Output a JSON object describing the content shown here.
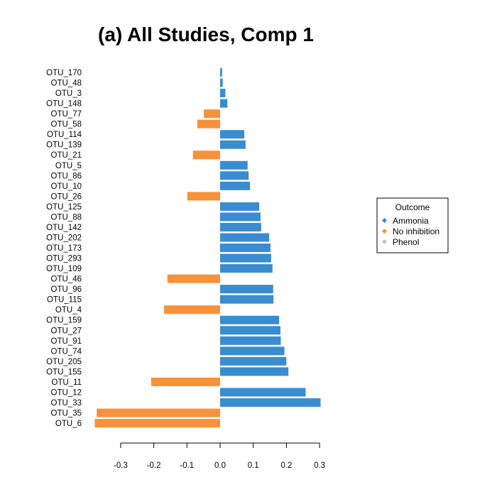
{
  "chart_data": {
    "type": "bar",
    "orientation": "horizontal",
    "title": "(a) All Studies, Comp 1",
    "xlabel": "",
    "ylabel": "",
    "xlim": [
      -0.38,
      0.32
    ],
    "xticks": [
      -0.3,
      -0.2,
      -0.1,
      0.0,
      0.1,
      0.2,
      0.3
    ],
    "xtick_labels": [
      "-0.3",
      "-0.2",
      "-0.1",
      "0.0",
      "0.1",
      "0.2",
      "0.3"
    ],
    "grid": false,
    "legend": {
      "title": "Outcome",
      "placement": "right",
      "entries": [
        {
          "label": "Ammonia",
          "color": "#3a8cd1"
        },
        {
          "label": "No inhibition",
          "color": "#f7913a"
        },
        {
          "label": "Phenol",
          "color": "#c0c0c0"
        }
      ]
    },
    "bars": [
      {
        "label": "OTU_170",
        "value": 0.006,
        "outcome": "Ammonia"
      },
      {
        "label": "OTU_48",
        "value": 0.008,
        "outcome": "Ammonia"
      },
      {
        "label": "OTU_3",
        "value": 0.016,
        "outcome": "Ammonia"
      },
      {
        "label": "OTU_148",
        "value": 0.022,
        "outcome": "Ammonia"
      },
      {
        "label": "OTU_77",
        "value": -0.049,
        "outcome": "No inhibition"
      },
      {
        "label": "OTU_58",
        "value": -0.069,
        "outcome": "No inhibition"
      },
      {
        "label": "OTU_114",
        "value": 0.073,
        "outcome": "Ammonia"
      },
      {
        "label": "OTU_139",
        "value": 0.077,
        "outcome": "Ammonia"
      },
      {
        "label": "OTU_21",
        "value": -0.082,
        "outcome": "No inhibition"
      },
      {
        "label": "OTU_5",
        "value": 0.083,
        "outcome": "Ammonia"
      },
      {
        "label": "OTU_86",
        "value": 0.086,
        "outcome": "Ammonia"
      },
      {
        "label": "OTU_10",
        "value": 0.09,
        "outcome": "Ammonia"
      },
      {
        "label": "OTU_26",
        "value": -0.099,
        "outcome": "No inhibition"
      },
      {
        "label": "OTU_125",
        "value": 0.118,
        "outcome": "Ammonia"
      },
      {
        "label": "OTU_88",
        "value": 0.122,
        "outcome": "Ammonia"
      },
      {
        "label": "OTU_142",
        "value": 0.124,
        "outcome": "Ammonia"
      },
      {
        "label": "OTU_202",
        "value": 0.148,
        "outcome": "Ammonia"
      },
      {
        "label": "OTU_173",
        "value": 0.152,
        "outcome": "Ammonia"
      },
      {
        "label": "OTU_293",
        "value": 0.154,
        "outcome": "Ammonia"
      },
      {
        "label": "OTU_109",
        "value": 0.158,
        "outcome": "Ammonia"
      },
      {
        "label": "OTU_46",
        "value": -0.159,
        "outcome": "No inhibition"
      },
      {
        "label": "OTU_96",
        "value": 0.16,
        "outcome": "Ammonia"
      },
      {
        "label": "OTU_115",
        "value": 0.161,
        "outcome": "Ammonia"
      },
      {
        "label": "OTU_4",
        "value": -0.169,
        "outcome": "No inhibition"
      },
      {
        "label": "OTU_159",
        "value": 0.178,
        "outcome": "Ammonia"
      },
      {
        "label": "OTU_27",
        "value": 0.182,
        "outcome": "Ammonia"
      },
      {
        "label": "OTU_91",
        "value": 0.183,
        "outcome": "Ammonia"
      },
      {
        "label": "OTU_74",
        "value": 0.194,
        "outcome": "Ammonia"
      },
      {
        "label": "OTU_205",
        "value": 0.2,
        "outcome": "Ammonia"
      },
      {
        "label": "OTU_155",
        "value": 0.206,
        "outcome": "Ammonia"
      },
      {
        "label": "OTU_11",
        "value": -0.208,
        "outcome": "No inhibition"
      },
      {
        "label": "OTU_12",
        "value": 0.258,
        "outcome": "Ammonia"
      },
      {
        "label": "OTU_33",
        "value": 0.303,
        "outcome": "Ammonia"
      },
      {
        "label": "OTU_35",
        "value": -0.372,
        "outcome": "No inhibition"
      },
      {
        "label": "OTU_6",
        "value": -0.378,
        "outcome": "No inhibition"
      }
    ]
  }
}
